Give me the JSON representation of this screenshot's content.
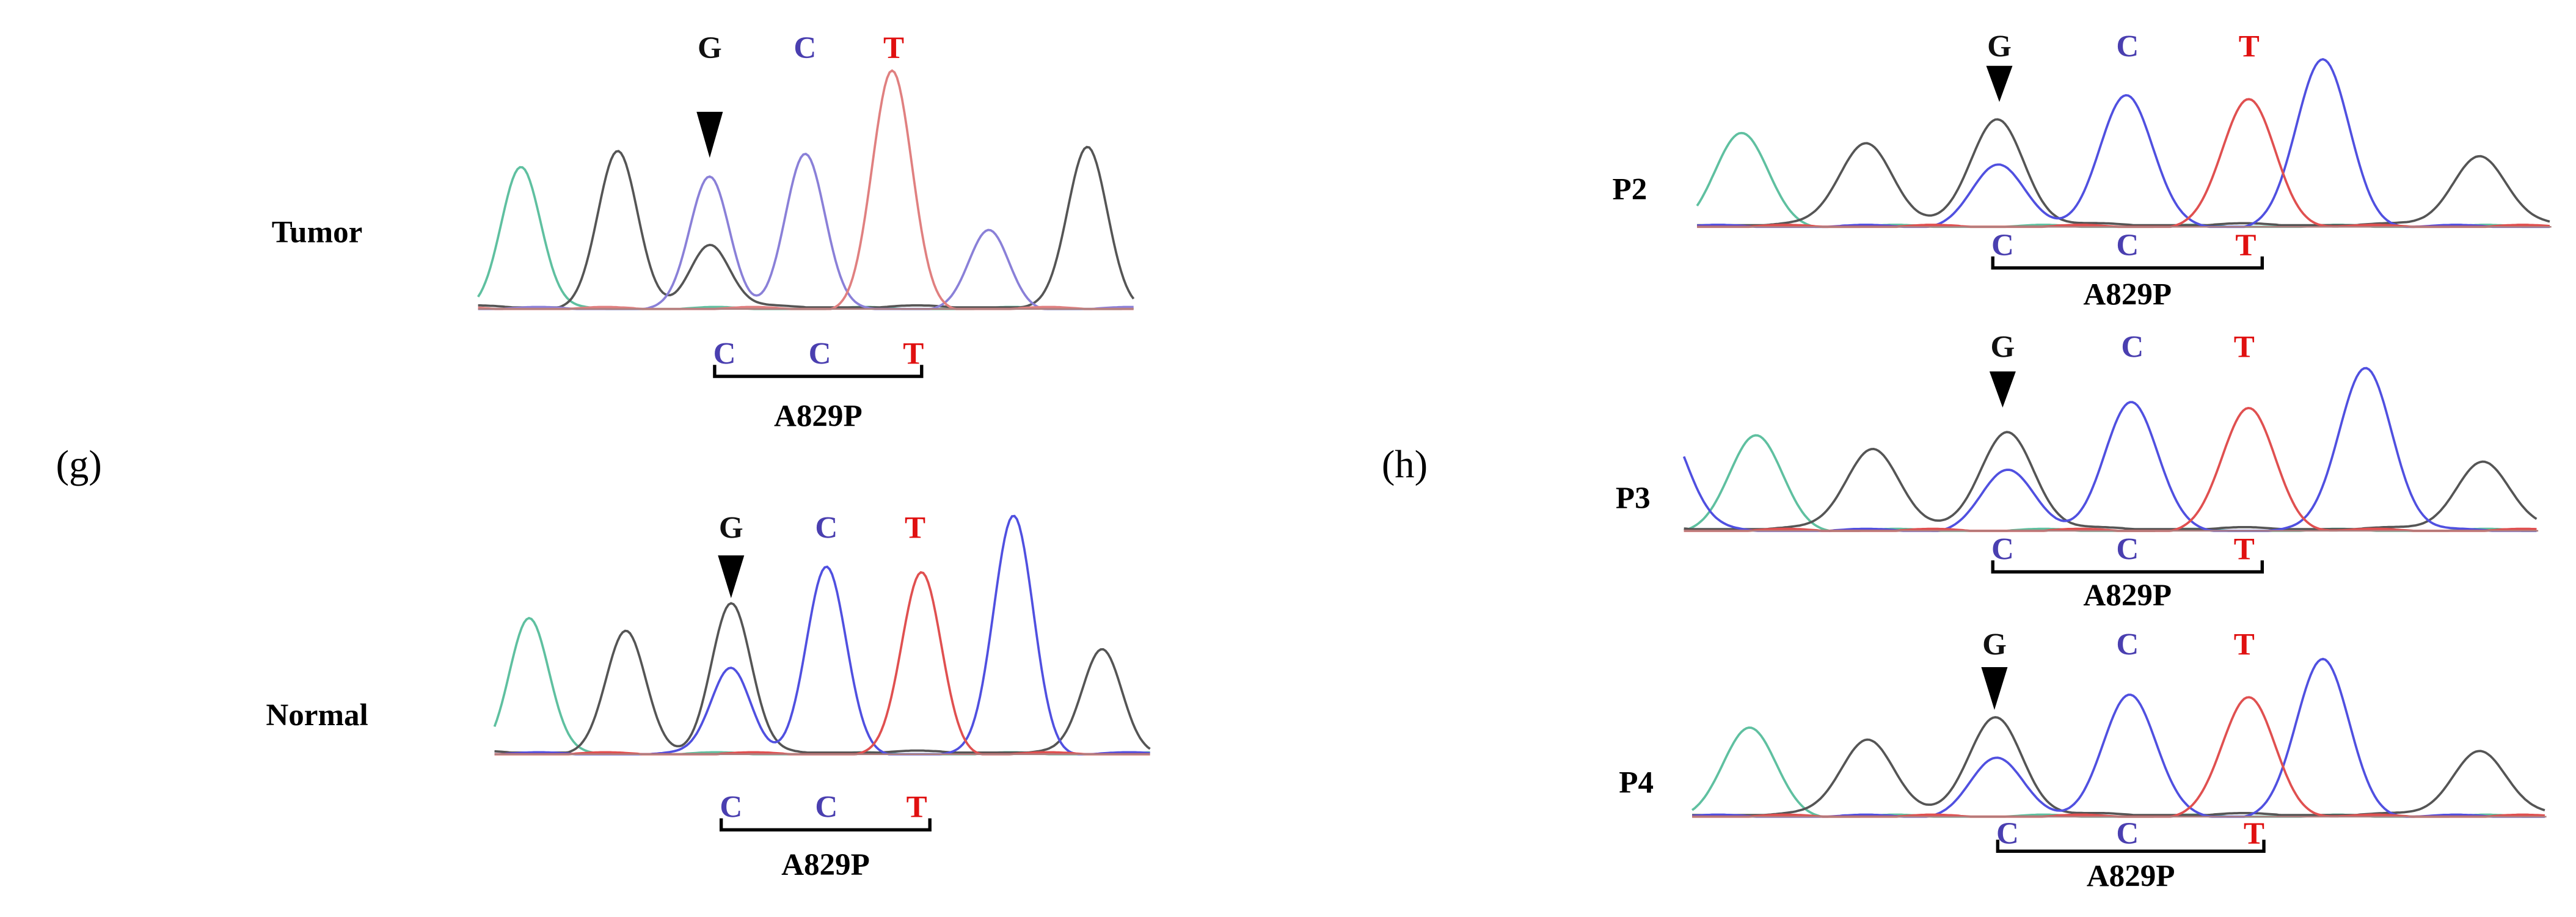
{
  "panels": [
    {
      "label": "(g)",
      "tracks": [
        {
          "sample": "Tumor",
          "top_bases": [
            "G",
            "C",
            "T"
          ],
          "bottom_bases": [
            "C",
            "C",
            "T"
          ],
          "mutation": "A829P"
        },
        {
          "sample": "Normal",
          "top_bases": [
            "G",
            "C",
            "T"
          ],
          "bottom_bases": [
            "C",
            "C",
            "T"
          ],
          "mutation": "A829P"
        }
      ]
    },
    {
      "label": "(h)",
      "tracks": [
        {
          "sample": "P2",
          "top_bases": [
            "G",
            "C",
            "T"
          ],
          "bottom_bases": [
            "C",
            "C",
            "T"
          ],
          "mutation": "A829P"
        },
        {
          "sample": "P3",
          "top_bases": [
            "G",
            "C",
            "T"
          ],
          "bottom_bases": [
            "C",
            "C",
            "T"
          ],
          "mutation": "A829P"
        },
        {
          "sample": "P4",
          "top_bases": [
            "G",
            "C",
            "T"
          ],
          "bottom_bases": [
            "C",
            "C",
            "T"
          ],
          "mutation": "A829P"
        }
      ]
    }
  ]
}
